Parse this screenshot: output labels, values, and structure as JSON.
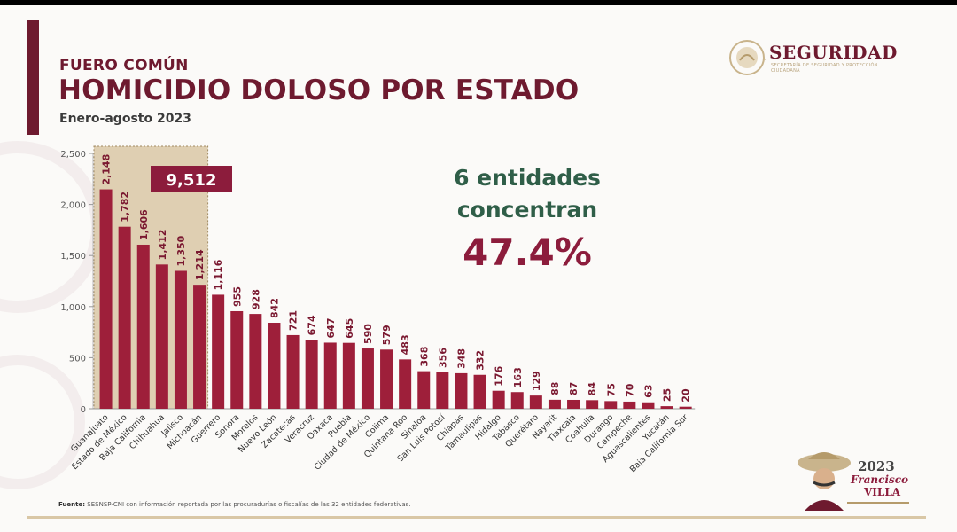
{
  "header": {
    "kicker": "FUERO COMÚN",
    "title": "HOMICIDIO DOLOSO POR ESTADO",
    "subtitle": "Enero-agosto 2023"
  },
  "logo": {
    "name": "SEGURIDAD",
    "sub": "SECRETARÍA DE SEGURIDAD Y PROTECCIÓN CIUDADANA"
  },
  "callout": {
    "line1": "6 entidades",
    "line2": "concentran",
    "percent": "47.4%"
  },
  "highlight": {
    "total_label": "9,512",
    "count": 6
  },
  "source": {
    "label": "Fuente:",
    "text": " SESNSP-CNI con información reportada por las procuradurías o fiscalías de las 32 entidades federativas."
  },
  "seal": {
    "year": "2023",
    "name1": "Francisco",
    "name2": "VILLA"
  },
  "colors": {
    "bar": "#9e1f3a",
    "highlight_box": "#d9c7a6",
    "total_badge": "#8c1c3c",
    "callout_text": "#2f5e48",
    "percent_text": "#8c1c3c"
  },
  "chart_data": {
    "type": "bar",
    "title": "HOMICIDIO DOLOSO POR ESTADO",
    "ylim": [
      0,
      2500
    ],
    "yticks": [
      0,
      500,
      1000,
      1500,
      2000,
      2500
    ],
    "ytick_labels": [
      "0",
      "500",
      "1,000",
      "1,500",
      "2,000",
      "2,500"
    ],
    "categories": [
      "Guanajuato",
      "Estado de México",
      "Baja California",
      "Chihuahua",
      "Jalisco",
      "Michoacán",
      "Guerrero",
      "Sonora",
      "Morelos",
      "Nuevo León",
      "Zacatecas",
      "Veracruz",
      "Oaxaca",
      "Puebla",
      "Ciudad de México",
      "Colima",
      "Quintana Roo",
      "Sinaloa",
      "San Luis Potosí",
      "Chiapas",
      "Tamaulipas",
      "Hidalgo",
      "Tabasco",
      "Querétaro",
      "Nayarit",
      "Tlaxcala",
      "Coahuila",
      "Durango",
      "Campeche",
      "Aguascalientes",
      "Yucatán",
      "Baja California Sur"
    ],
    "values": [
      2148,
      1782,
      1606,
      1412,
      1350,
      1214,
      1116,
      955,
      928,
      842,
      721,
      674,
      647,
      645,
      590,
      579,
      483,
      368,
      356,
      348,
      332,
      176,
      163,
      129,
      88,
      87,
      84,
      75,
      70,
      63,
      25,
      20
    ],
    "value_labels": [
      "2,148",
      "1,782",
      "1,606",
      "1,412",
      "1,350",
      "1,214",
      "1,116",
      "955",
      "928",
      "842",
      "721",
      "674",
      "647",
      "645",
      "590",
      "579",
      "483",
      "368",
      "356",
      "348",
      "332",
      "176",
      "163",
      "129",
      "88",
      "87",
      "84",
      "75",
      "70",
      "63",
      "25",
      "20"
    ]
  }
}
